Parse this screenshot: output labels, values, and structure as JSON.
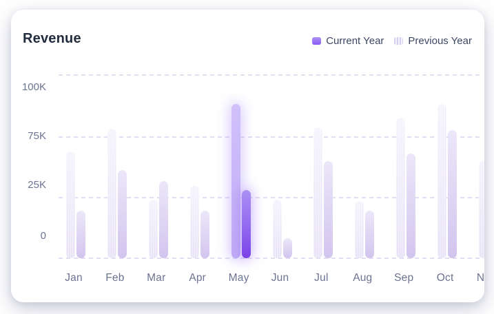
{
  "card": {
    "title": "Revenue"
  },
  "legend": {
    "items": [
      {
        "label": "Current Year",
        "swatch": "solid-purple-gradient"
      },
      {
        "label": "Previous Year",
        "swatch": "pale-striped"
      }
    ]
  },
  "chart_data": {
    "type": "bar",
    "title": "Revenue",
    "categories": [
      "Jan",
      "Feb",
      "Mar",
      "Apr",
      "May",
      "Jun",
      "Jul",
      "Aug",
      "Sep",
      "Oct",
      "Nov"
    ],
    "series": [
      {
        "name": "Previous Year",
        "values_k": [
          69,
          84,
          38,
          47,
          100,
          38,
          85,
          37,
          91,
          100,
          63
        ]
      },
      {
        "name": "Current Year",
        "values_k": [
          31,
          57,
          50,
          31,
          44,
          13,
          63,
          31,
          68,
          83,
          null
        ]
      }
    ],
    "bar_order_left_to_right": [
      "Previous Year",
      "Current Year"
    ],
    "y_tick_labels": [
      "100K",
      "75K",
      "25K",
      "0"
    ],
    "unit": "K",
    "ylim": [
      0,
      105
    ],
    "highlighted_category": "May",
    "grid": "horizontal-dashed",
    "legend_position": "top-right",
    "note_visible": "Nov column partially clipped at card edge"
  },
  "colors": {
    "page_bg": "#ffffff",
    "card_bg": "#ffffff",
    "title_text": "#232b3e",
    "legend_text": "#3d4763",
    "axis_text": "#6b7390",
    "grid_line": "#e2def2",
    "accent": "#8b5cf6",
    "prev_swatch": "#d5cdf2",
    "prev_top": "#f4f2fd",
    "prev_bottom": "#e6e0f7",
    "cur_top": "#ece7f9",
    "cur_bottom": "#d2c5ee",
    "prev_hl_top": "#cfc0fa",
    "prev_hl_bottom": "#c1acf6",
    "cur_hl_top": "#ab90f4",
    "cur_hl_bottom": "#7b43e7"
  }
}
